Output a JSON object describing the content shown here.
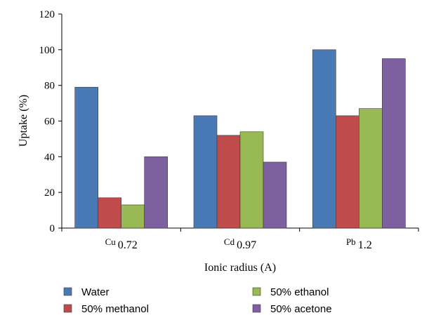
{
  "chart_data": {
    "type": "bar",
    "categories": [
      {
        "symbol": "Cu",
        "radius": "0.72"
      },
      {
        "symbol": "Cd",
        "radius": "0.97"
      },
      {
        "symbol": "Pb",
        "radius": "1.2"
      }
    ],
    "series": [
      {
        "name": "Water",
        "color": "#4a7ab5",
        "values": [
          79,
          63,
          100
        ]
      },
      {
        "name": "50% methanol",
        "color": "#bf4b4a",
        "values": [
          17,
          52,
          63
        ]
      },
      {
        "name": "50% ethanol",
        "color": "#98b954",
        "values": [
          13,
          54,
          67
        ]
      },
      {
        "name": "50% acetone",
        "color": "#7d60a0",
        "values": [
          40,
          37,
          95
        ]
      }
    ],
    "xlabel": "Ionic radius (A)",
    "ylabel": "Uptake (%)",
    "ylim": [
      0,
      120
    ],
    "yticks": [
      0,
      20,
      40,
      60,
      80,
      100,
      120
    ],
    "legend_position": "bottom",
    "grid": false
  }
}
